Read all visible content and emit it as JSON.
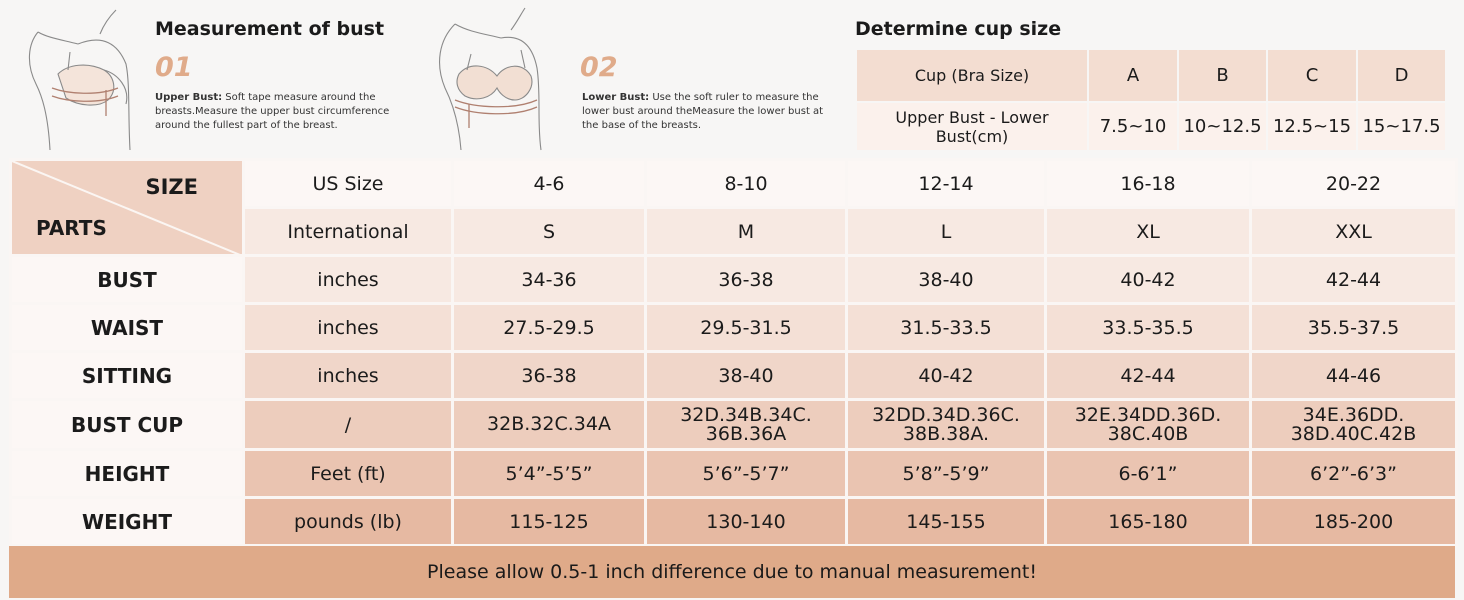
{
  "measure": {
    "title": "Measurement of bust",
    "step1": {
      "num": "01",
      "label": "Upper Bust:",
      "text": " Soft tape measure around the breasts.Measure the upper bust circumference around the fullest part of the breast."
    },
    "step2": {
      "num": "02",
      "label": "Lower Bust:",
      "text": " Use the soft ruler to measure the lower bust around theMeasure the lower bust at the base of the breasts."
    }
  },
  "cup_table": {
    "title": "Determine cup size",
    "header": [
      "Cup (Bra Size)",
      "A",
      "B",
      "C",
      "D"
    ],
    "row": [
      "Upper Bust - Lower Bust(cm)",
      "7.5~10",
      "10~12.5",
      "12.5~15",
      "15~17.5"
    ]
  },
  "size_table": {
    "corner_size": "SIZE",
    "corner_parts": "PARTS",
    "rows": [
      [
        "US Size",
        "4-6",
        "8-10",
        "12-14",
        "16-18",
        "20-22"
      ],
      [
        "International",
        "S",
        "M",
        "L",
        "XL",
        "XXL"
      ],
      [
        "BUST",
        "inches",
        "34-36",
        "36-38",
        "38-40",
        "40-42",
        "42-44"
      ],
      [
        "WAIST",
        "inches",
        "27.5-29.5",
        "29.5-31.5",
        "31.5-33.5",
        "33.5-35.5",
        "35.5-37.5"
      ],
      [
        "SITTING",
        "inches",
        "36-38",
        "38-40",
        "40-42",
        "42-44",
        "44-46"
      ],
      [
        "BUST CUP",
        "/",
        "32B.32C.34A",
        "32D.34B.34C. 36B.36A",
        "32DD.34D.36C. 38B.38A.",
        "32E.34DD.36D. 38C.40B",
        "34E.36DD. 38D.40C.42B"
      ],
      [
        "HEIGHT",
        "Feet (ft)",
        "5’4”-5’5”",
        "5’6”-5’7”",
        "5’8”-5’9”",
        "6-6’1”",
        "6’2”-6’3”"
      ],
      [
        "WEIGHT",
        "pounds (lb)",
        "115-125",
        "130-140",
        "145-155",
        "165-180",
        "185-200"
      ]
    ]
  },
  "note": "Please allow 0.5-1 inch difference due to manual measurement!",
  "colors": {
    "row_light": "#fcf7f5",
    "row_1": "#f7e9e2",
    "row_2": "#f4e0d6",
    "row_3": "#f0d6c9",
    "row_4": "#edcdbd",
    "row_5": "#eac4b1",
    "row_6": "#e6b9a2",
    "footer": "#dfaa89"
  }
}
